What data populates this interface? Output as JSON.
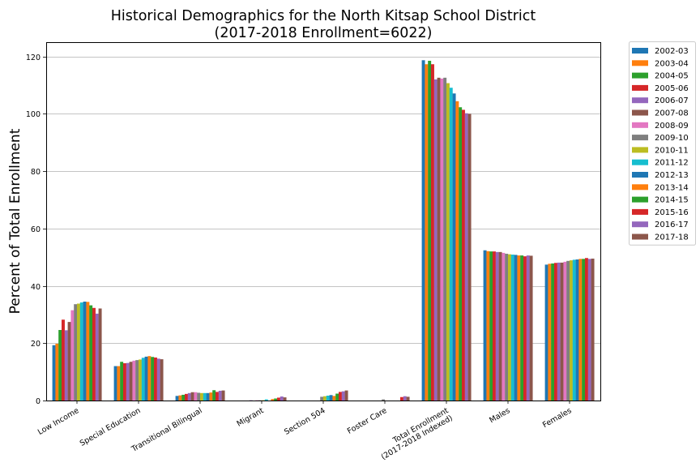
{
  "chart_data": {
    "type": "bar",
    "title": "Historical Demographics for the North Kitsap School District",
    "subtitle": "(2017-2018 Enrollment=6022)",
    "xlabel": "",
    "ylabel": "Percent of Total Enrollment",
    "ylim": [
      0,
      125
    ],
    "yticks": [
      0,
      20,
      40,
      60,
      80,
      100,
      120
    ],
    "grid": "y",
    "legend_position": "outside-right",
    "categories": [
      "Low Income",
      "Special Education",
      "Transitional Bilingual",
      "Migrant",
      "Section 504",
      "Foster Care",
      "Total Enrollment\n(2017-2018 Indexed)",
      "Males",
      "Females"
    ],
    "series": [
      {
        "name": "2002-03",
        "color": "#1f77b4",
        "values": [
          19.3,
          12.0,
          1.6,
          0.0,
          0.0,
          0.0,
          118.7,
          52.4,
          47.4
        ]
      },
      {
        "name": "2003-04",
        "color": "#ff7f0e",
        "values": [
          19.8,
          12.0,
          1.8,
          0.0,
          0.0,
          0.0,
          117.3,
          52.1,
          47.7
        ]
      },
      {
        "name": "2004-05",
        "color": "#2ca02c",
        "values": [
          24.6,
          13.5,
          2.0,
          0.0,
          0.0,
          0.0,
          118.5,
          52.0,
          47.8
        ]
      },
      {
        "name": "2005-06",
        "color": "#d62728",
        "values": [
          28.2,
          13.0,
          2.3,
          0.0,
          0.0,
          0.0,
          117.3,
          52.0,
          48.0
        ]
      },
      {
        "name": "2006-07",
        "color": "#9467bd",
        "values": [
          24.5,
          13.1,
          2.6,
          0.1,
          0.0,
          0.0,
          112.0,
          51.8,
          48.1
        ]
      },
      {
        "name": "2007-08",
        "color": "#8c564b",
        "values": [
          27.4,
          13.5,
          2.9,
          0.0,
          0.0,
          0.0,
          112.6,
          51.8,
          48.1
        ]
      },
      {
        "name": "2008-09",
        "color": "#e377c2",
        "values": [
          31.5,
          13.9,
          2.9,
          0.1,
          0.0,
          0.0,
          112.3,
          51.5,
          48.4
        ]
      },
      {
        "name": "2009-10",
        "color": "#7f7f7f",
        "values": [
          33.6,
          14.1,
          2.7,
          0.1,
          1.3,
          0.4,
          112.6,
          51.2,
          48.7
        ]
      },
      {
        "name": "2010-11",
        "color": "#bcbd22",
        "values": [
          33.8,
          14.3,
          2.6,
          0.1,
          1.5,
          0.0,
          110.7,
          51.0,
          48.9
        ]
      },
      {
        "name": "2011-12",
        "color": "#17becf",
        "values": [
          34.2,
          14.9,
          2.6,
          0.4,
          1.7,
          0.0,
          109.1,
          50.9,
          49.1
        ]
      },
      {
        "name": "2012-13",
        "color": "#1f77b4",
        "values": [
          34.5,
          15.3,
          2.6,
          0.0,
          1.9,
          0.0,
          107.1,
          50.8,
          49.2
        ]
      },
      {
        "name": "2013-14",
        "color": "#ff7f0e",
        "values": [
          34.4,
          15.5,
          2.8,
          0.5,
          1.6,
          0.0,
          104.4,
          50.6,
          49.4
        ]
      },
      {
        "name": "2014-15",
        "color": "#2ca02c",
        "values": [
          33.2,
          15.2,
          3.6,
          0.7,
          2.4,
          0.0,
          102.3,
          50.6,
          49.4
        ]
      },
      {
        "name": "2015-16",
        "color": "#d62728",
        "values": [
          32.3,
          15.0,
          3.0,
          1.0,
          3.0,
          1.2,
          101.4,
          50.3,
          49.7
        ]
      },
      {
        "name": "2016-17",
        "color": "#9467bd",
        "values": [
          30.3,
          14.6,
          3.4,
          1.4,
          3.2,
          1.5,
          100.2,
          50.6,
          49.4
        ]
      },
      {
        "name": "2017-18",
        "color": "#8c564b",
        "values": [
          32.1,
          14.4,
          3.5,
          1.1,
          3.5,
          1.3,
          100.0,
          50.5,
          49.5
        ]
      }
    ]
  }
}
